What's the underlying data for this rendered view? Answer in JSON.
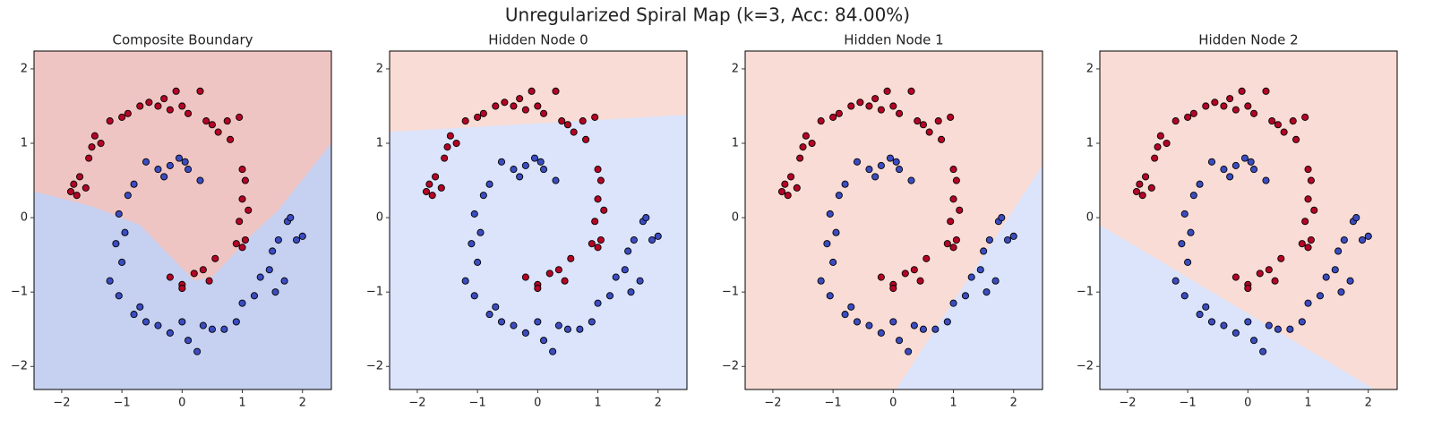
{
  "title": "Unregularized Spiral Map (k=3, Acc: 84.00%)",
  "chart_data": [
    {
      "type": "scatter",
      "title": "Composite Boundary",
      "xlim": [
        -2.46,
        2.48
      ],
      "ylim": [
        -2.31,
        2.24
      ],
      "xticks": [
        {
          "value": -2,
          "label": "−2"
        },
        {
          "value": -1,
          "label": "−1"
        },
        0,
        1,
        2
      ],
      "yticks": [
        {
          "value": -2,
          "label": "−2"
        },
        {
          "value": -1,
          "label": "−1"
        },
        0,
        1,
        2
      ],
      "regions": [
        {
          "color": "#efc5c3",
          "x": [
            -2.46,
            2.48,
            2.48,
            1.6,
            1.2,
            0.5,
            0.2,
            -0.7,
            -1.5,
            -2.46
          ],
          "y": [
            2.24,
            2.24,
            1.0,
            0.1,
            -0.2,
            -0.8,
            -0.85,
            -0.1,
            0.15,
            0.35
          ]
        },
        {
          "color": "#c6d0f1",
          "x": [
            -2.46,
            -1.5,
            -0.7,
            0.2,
            0.5,
            1.2,
            1.6,
            2.48,
            2.48,
            -2.46
          ],
          "y": [
            0.35,
            0.15,
            -0.1,
            -0.85,
            -0.8,
            -0.2,
            0.1,
            1.0,
            -2.31,
            -2.31
          ]
        }
      ],
      "series": [
        {
          "color": "#b40426",
          "x": [
            -1.85,
            -1.8,
            -1.75,
            -1.7,
            -1.6,
            -1.55,
            -1.5,
            -1.45,
            -1.35,
            -1.2,
            -1.0,
            -0.9,
            -0.7,
            -0.55,
            -0.4,
            -0.3,
            -0.2,
            -0.1,
            0.0,
            0.1,
            0.3,
            0.4,
            0.5,
            0.6,
            0.75,
            0.8,
            0.95,
            1.0,
            1.05,
            1.0,
            1.1,
            0.95,
            1.05,
            0.9,
            0.55,
            0.35,
            0.45,
            0.2,
            0.0,
            -0.2,
            0.0,
            1.0
          ],
          "y": [
            0.35,
            0.45,
            0.3,
            0.55,
            0.4,
            0.8,
            0.95,
            1.1,
            1.0,
            1.3,
            1.35,
            1.4,
            1.5,
            1.55,
            1.5,
            1.6,
            1.45,
            1.7,
            1.5,
            1.4,
            1.7,
            1.3,
            1.25,
            1.15,
            1.3,
            1.05,
            1.35,
            0.65,
            0.5,
            0.25,
            0.1,
            -0.05,
            -0.3,
            -0.35,
            -0.55,
            -0.7,
            -0.85,
            -0.75,
            -0.9,
            -0.8,
            -0.95,
            -0.4
          ]
        },
        {
          "color": "#3b4cc0",
          "x": [
            -0.6,
            -0.4,
            -0.2,
            -0.05,
            0.05,
            0.1,
            0.3,
            -0.3,
            -0.8,
            -0.9,
            -1.05,
            -0.95,
            -1.1,
            -1.0,
            -1.2,
            -1.05,
            -0.8,
            -0.7,
            -0.6,
            -0.4,
            -0.2,
            0.0,
            0.1,
            0.25,
            0.35,
            0.5,
            0.7,
            0.9,
            1.0,
            1.2,
            1.3,
            1.45,
            1.5,
            1.6,
            1.75,
            1.8,
            1.9,
            2.0,
            1.7,
            1.55
          ],
          "y": [
            0.75,
            0.65,
            0.7,
            0.8,
            0.75,
            0.65,
            0.5,
            0.55,
            0.45,
            0.3,
            0.05,
            -0.2,
            -0.35,
            -0.6,
            -0.85,
            -1.05,
            -1.3,
            -1.2,
            -1.4,
            -1.45,
            -1.55,
            -1.4,
            -1.65,
            -1.8,
            -1.45,
            -1.5,
            -1.5,
            -1.4,
            -1.15,
            -1.05,
            -0.8,
            -0.7,
            -0.45,
            -0.3,
            -0.05,
            0.0,
            -0.3,
            -0.25,
            -0.85,
            -1.0
          ]
        }
      ]
    },
    {
      "type": "scatter",
      "title": "Hidden Node 0",
      "xlim": [
        -2.46,
        2.48
      ],
      "ylim": [
        -2.31,
        2.24
      ],
      "xticks": [
        {
          "value": -2,
          "label": "−2"
        },
        {
          "value": -1,
          "label": "−1"
        },
        0,
        1,
        2
      ],
      "yticks": [
        {
          "value": -2,
          "label": "−2"
        },
        {
          "value": -1,
          "label": "−1"
        },
        0,
        1,
        2
      ],
      "regions": [
        {
          "color": "#f9dcd5",
          "x": [
            -2.46,
            2.48,
            2.48,
            -2.46
          ],
          "y": [
            2.24,
            2.24,
            1.38,
            1.15
          ]
        },
        {
          "color": "#dbe4fb",
          "x": [
            -2.46,
            2.48,
            2.48,
            -2.46
          ],
          "y": [
            1.15,
            1.38,
            -2.31,
            -2.31
          ]
        }
      ],
      "series": [
        {
          "color": "#b40426",
          "x": [
            -1.85,
            -1.8,
            -1.75,
            -1.7,
            -1.6,
            -1.55,
            -1.5,
            -1.45,
            -1.35,
            -1.2,
            -1.0,
            -0.9,
            -0.7,
            -0.55,
            -0.4,
            -0.3,
            -0.2,
            -0.1,
            0.0,
            0.1,
            0.3,
            0.4,
            0.5,
            0.6,
            0.75,
            0.8,
            0.95,
            1.0,
            1.05,
            1.0,
            1.1,
            0.95,
            1.05,
            0.9,
            0.55,
            0.35,
            0.45,
            0.2,
            0.0,
            -0.2,
            0.0,
            1.0
          ],
          "y": [
            0.35,
            0.45,
            0.3,
            0.55,
            0.4,
            0.8,
            0.95,
            1.1,
            1.0,
            1.3,
            1.35,
            1.4,
            1.5,
            1.55,
            1.5,
            1.6,
            1.45,
            1.7,
            1.5,
            1.4,
            1.7,
            1.3,
            1.25,
            1.15,
            1.3,
            1.05,
            1.35,
            0.65,
            0.5,
            0.25,
            0.1,
            -0.05,
            -0.3,
            -0.35,
            -0.55,
            -0.7,
            -0.85,
            -0.75,
            -0.9,
            -0.8,
            -0.95,
            -0.4
          ]
        },
        {
          "color": "#3b4cc0",
          "x": [
            -0.6,
            -0.4,
            -0.2,
            -0.05,
            0.05,
            0.1,
            0.3,
            -0.3,
            -0.8,
            -0.9,
            -1.05,
            -0.95,
            -1.1,
            -1.0,
            -1.2,
            -1.05,
            -0.8,
            -0.7,
            -0.6,
            -0.4,
            -0.2,
            0.0,
            0.1,
            0.25,
            0.35,
            0.5,
            0.7,
            0.9,
            1.0,
            1.2,
            1.3,
            1.45,
            1.5,
            1.6,
            1.75,
            1.8,
            1.9,
            2.0,
            1.7,
            1.55
          ],
          "y": [
            0.75,
            0.65,
            0.7,
            0.8,
            0.75,
            0.65,
            0.5,
            0.55,
            0.45,
            0.3,
            0.05,
            -0.2,
            -0.35,
            -0.6,
            -0.85,
            -1.05,
            -1.3,
            -1.2,
            -1.4,
            -1.45,
            -1.55,
            -1.4,
            -1.65,
            -1.8,
            -1.45,
            -1.5,
            -1.5,
            -1.4,
            -1.15,
            -1.05,
            -0.8,
            -0.7,
            -0.45,
            -0.3,
            -0.05,
            0.0,
            -0.3,
            -0.25,
            -0.85,
            -1.0
          ]
        }
      ]
    },
    {
      "type": "scatter",
      "title": "Hidden Node 1",
      "xlim": [
        -2.46,
        2.48
      ],
      "ylim": [
        -2.31,
        2.24
      ],
      "xticks": [
        {
          "value": -2,
          "label": "−2"
        },
        {
          "value": -1,
          "label": "−1"
        },
        0,
        1,
        2
      ],
      "yticks": [
        {
          "value": -2,
          "label": "−2"
        },
        {
          "value": -1,
          "label": "−1"
        },
        0,
        1,
        2
      ],
      "regions": [
        {
          "color": "#f9dcd5",
          "x": [
            -2.46,
            2.48,
            2.48,
            0.05,
            -2.46
          ],
          "y": [
            2.24,
            2.24,
            0.7,
            -2.31,
            -2.31
          ]
        },
        {
          "color": "#dbe4fb",
          "x": [
            0.05,
            2.48,
            2.48
          ],
          "y": [
            -2.31,
            -2.31,
            0.7
          ]
        }
      ],
      "series": [
        {
          "color": "#b40426",
          "x": [
            -1.85,
            -1.8,
            -1.75,
            -1.7,
            -1.6,
            -1.55,
            -1.5,
            -1.45,
            -1.35,
            -1.2,
            -1.0,
            -0.9,
            -0.7,
            -0.55,
            -0.4,
            -0.3,
            -0.2,
            -0.1,
            0.0,
            0.1,
            0.3,
            0.4,
            0.5,
            0.6,
            0.75,
            0.8,
            0.95,
            1.0,
            1.05,
            1.0,
            1.1,
            0.95,
            1.05,
            0.9,
            0.55,
            0.35,
            0.45,
            0.2,
            0.0,
            -0.2,
            0.0,
            1.0
          ],
          "y": [
            0.35,
            0.45,
            0.3,
            0.55,
            0.4,
            0.8,
            0.95,
            1.1,
            1.0,
            1.3,
            1.35,
            1.4,
            1.5,
            1.55,
            1.5,
            1.6,
            1.45,
            1.7,
            1.5,
            1.4,
            1.7,
            1.3,
            1.25,
            1.15,
            1.3,
            1.05,
            1.35,
            0.65,
            0.5,
            0.25,
            0.1,
            -0.05,
            -0.3,
            -0.35,
            -0.55,
            -0.7,
            -0.85,
            -0.75,
            -0.9,
            -0.8,
            -0.95,
            -0.4
          ]
        },
        {
          "color": "#3b4cc0",
          "x": [
            -0.6,
            -0.4,
            -0.2,
            -0.05,
            0.05,
            0.1,
            0.3,
            -0.3,
            -0.8,
            -0.9,
            -1.05,
            -0.95,
            -1.1,
            -1.0,
            -1.2,
            -1.05,
            -0.8,
            -0.7,
            -0.6,
            -0.4,
            -0.2,
            0.0,
            0.1,
            0.25,
            0.35,
            0.5,
            0.7,
            0.9,
            1.0,
            1.2,
            1.3,
            1.45,
            1.5,
            1.6,
            1.75,
            1.8,
            1.9,
            2.0,
            1.7,
            1.55
          ],
          "y": [
            0.75,
            0.65,
            0.7,
            0.8,
            0.75,
            0.65,
            0.5,
            0.55,
            0.45,
            0.3,
            0.05,
            -0.2,
            -0.35,
            -0.6,
            -0.85,
            -1.05,
            -1.3,
            -1.2,
            -1.4,
            -1.45,
            -1.55,
            -1.4,
            -1.65,
            -1.8,
            -1.45,
            -1.5,
            -1.5,
            -1.4,
            -1.15,
            -1.05,
            -0.8,
            -0.7,
            -0.45,
            -0.3,
            -0.05,
            0.0,
            -0.3,
            -0.25,
            -0.85,
            -1.0
          ]
        }
      ]
    },
    {
      "type": "scatter",
      "title": "Hidden Node 2",
      "xlim": [
        -2.46,
        2.48
      ],
      "ylim": [
        -2.31,
        2.24
      ],
      "xticks": [
        {
          "value": -2,
          "label": "−2"
        },
        {
          "value": -1,
          "label": "−1"
        },
        0,
        1,
        2
      ],
      "yticks": [
        {
          "value": -2,
          "label": "−2"
        },
        {
          "value": -1,
          "label": "−1"
        },
        0,
        1,
        2
      ],
      "regions": [
        {
          "color": "#f9dcd5",
          "x": [
            -2.46,
            2.48,
            2.48,
            2.1,
            -2.46
          ],
          "y": [
            2.24,
            2.24,
            -2.31,
            -2.31,
            -0.1
          ]
        },
        {
          "color": "#dbe4fb",
          "x": [
            -2.46,
            2.1,
            -2.46
          ],
          "y": [
            -0.1,
            -2.31,
            -2.31
          ]
        }
      ],
      "series": [
        {
          "color": "#b40426",
          "x": [
            -1.85,
            -1.8,
            -1.75,
            -1.7,
            -1.6,
            -1.55,
            -1.5,
            -1.45,
            -1.35,
            -1.2,
            -1.0,
            -0.9,
            -0.7,
            -0.55,
            -0.4,
            -0.3,
            -0.2,
            -0.1,
            0.0,
            0.1,
            0.3,
            0.4,
            0.5,
            0.6,
            0.75,
            0.8,
            0.95,
            1.0,
            1.05,
            1.0,
            1.1,
            0.95,
            1.05,
            0.9,
            0.55,
            0.35,
            0.45,
            0.2,
            0.0,
            -0.2,
            0.0,
            1.0
          ],
          "y": [
            0.35,
            0.45,
            0.3,
            0.55,
            0.4,
            0.8,
            0.95,
            1.1,
            1.0,
            1.3,
            1.35,
            1.4,
            1.5,
            1.55,
            1.5,
            1.6,
            1.45,
            1.7,
            1.5,
            1.4,
            1.7,
            1.3,
            1.25,
            1.15,
            1.3,
            1.05,
            1.35,
            0.65,
            0.5,
            0.25,
            0.1,
            -0.05,
            -0.3,
            -0.35,
            -0.55,
            -0.7,
            -0.85,
            -0.75,
            -0.9,
            -0.8,
            -0.95,
            -0.4
          ]
        },
        {
          "color": "#3b4cc0",
          "x": [
            -0.6,
            -0.4,
            -0.2,
            -0.05,
            0.05,
            0.1,
            0.3,
            -0.3,
            -0.8,
            -0.9,
            -1.05,
            -0.95,
            -1.1,
            -1.0,
            -1.2,
            -1.05,
            -0.8,
            -0.7,
            -0.6,
            -0.4,
            -0.2,
            0.0,
            0.1,
            0.25,
            0.35,
            0.5,
            0.7,
            0.9,
            1.0,
            1.2,
            1.3,
            1.45,
            1.5,
            1.6,
            1.75,
            1.8,
            1.9,
            2.0,
            1.7,
            1.55
          ],
          "y": [
            0.75,
            0.65,
            0.7,
            0.8,
            0.75,
            0.65,
            0.5,
            0.55,
            0.45,
            0.3,
            0.05,
            -0.2,
            -0.35,
            -0.6,
            -0.85,
            -1.05,
            -1.3,
            -1.2,
            -1.4,
            -1.45,
            -1.55,
            -1.4,
            -1.65,
            -1.8,
            -1.45,
            -1.5,
            -1.5,
            -1.4,
            -1.15,
            -1.05,
            -0.8,
            -0.7,
            -0.45,
            -0.3,
            -0.05,
            0.0,
            -0.3,
            -0.25,
            -0.85,
            -1.0
          ]
        }
      ]
    }
  ]
}
